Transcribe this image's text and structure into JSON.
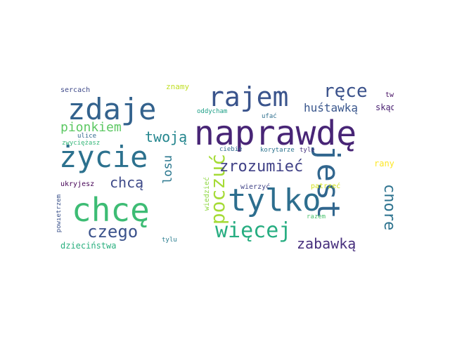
{
  "words": [
    {
      "text": "naprawdę",
      "color": "#482576"
    },
    {
      "text": "tylko",
      "color": "#2d6e8e"
    },
    {
      "text": "chcę",
      "color": "#3dbc74"
    },
    {
      "text": "życie",
      "color": "#2c718e"
    },
    {
      "text": "zdaje",
      "color": "#33628d"
    },
    {
      "text": "jest",
      "color": "#31668e"
    },
    {
      "text": "rajem",
      "color": "#3a548c"
    },
    {
      "text": "poczuć",
      "color": "#a5db36"
    },
    {
      "text": "więcej",
      "color": "#27ad81"
    },
    {
      "text": "chore",
      "color": "#2c728e"
    },
    {
      "text": "zrozumieć",
      "color": "#414287"
    },
    {
      "text": "ręce",
      "color": "#3b528b"
    },
    {
      "text": "czego",
      "color": "#3b528b"
    },
    {
      "text": "chcą",
      "color": "#3e4a89"
    },
    {
      "text": "twoją",
      "color": "#24868e"
    },
    {
      "text": "zabawką",
      "color": "#472f7d"
    },
    {
      "text": "pionkiem",
      "color": "#5cc863"
    },
    {
      "text": "huśtawką",
      "color": "#39568c"
    },
    {
      "text": "losu",
      "color": "#2a778e"
    },
    {
      "text": "skąd",
      "color": "#481f70"
    },
    {
      "text": "dzieciństwa",
      "color": "#2ab07f"
    },
    {
      "text": "znamy",
      "color": "#c0df25"
    },
    {
      "text": "rany",
      "color": "#fde725"
    },
    {
      "text": "sercach",
      "color": "#3e4989"
    },
    {
      "text": "twym",
      "color": "#471164"
    },
    {
      "text": "ukryjesz",
      "color": "#440154"
    },
    {
      "text": "patrzeć",
      "color": "#d2e21b"
    },
    {
      "text": "wierzyć",
      "color": "#414487"
    },
    {
      "text": "wiedzieć",
      "color": "#8fd744"
    },
    {
      "text": "powietrzem",
      "color": "#3b528b"
    },
    {
      "text": "ulice",
      "color": "#31688e"
    },
    {
      "text": "zwyciężasz",
      "color": "#35b779"
    },
    {
      "text": "oddycham",
      "color": "#1fa088"
    },
    {
      "text": "ufać",
      "color": "#2e6f8e"
    },
    {
      "text": "ciebie",
      "color": "#306a8e"
    },
    {
      "text": "korytarze",
      "color": "#2c738e"
    },
    {
      "text": "tyle",
      "color": "#46337f"
    },
    {
      "text": "razem",
      "color": "#4ac16d"
    },
    {
      "text": "tylu",
      "color": "#287c8e"
    }
  ]
}
